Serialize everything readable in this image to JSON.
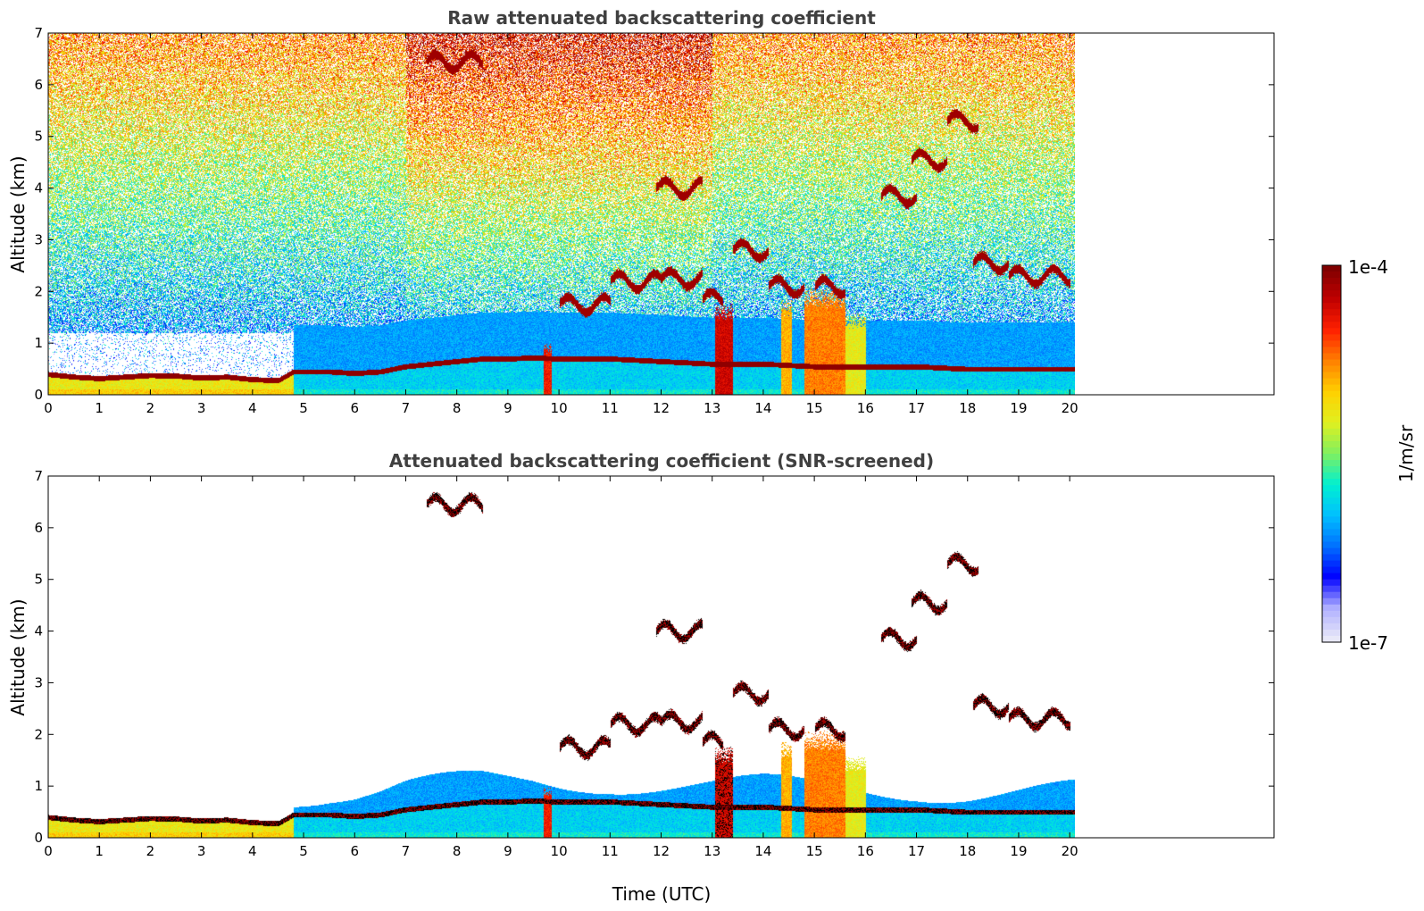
{
  "colors": {
    "background": "#ffffff",
    "title": "#404040",
    "axis": "#000000",
    "colormap": [
      "#e8e8f8",
      "#b0b0ff",
      "#0000ff",
      "#0070ff",
      "#00c0ff",
      "#00f0d0",
      "#80f060",
      "#e0f020",
      "#ffd000",
      "#ff8000",
      "#ff2000",
      "#c00000",
      "#800000"
    ]
  },
  "chart_data": [
    {
      "type": "heatmap",
      "title": "Raw attenuated backscattering coefficient",
      "xlabel": "",
      "ylabel": "Altitude (km)",
      "xlim": [
        0,
        24
      ],
      "ylim": [
        0,
        7
      ],
      "x_ticks": [
        "0",
        "1",
        "2",
        "3",
        "4",
        "5",
        "6",
        "7",
        "8",
        "9",
        "10",
        "11",
        "12",
        "13",
        "14",
        "15",
        "16",
        "17",
        "18",
        "19",
        "20"
      ],
      "y_ticks": [
        "0",
        "1",
        "2",
        "3",
        "4",
        "5",
        "6",
        "7"
      ],
      "data_extent_hours": [
        0,
        20.1
      ],
      "screened": false,
      "boundary_layer": [
        [
          0,
          0.4
        ],
        [
          0.5,
          0.35
        ],
        [
          1,
          0.32
        ],
        [
          1.5,
          0.35
        ],
        [
          2,
          0.38
        ],
        [
          2.5,
          0.37
        ],
        [
          3,
          0.33
        ],
        [
          3.5,
          0.35
        ],
        [
          4,
          0.3
        ],
        [
          4.5,
          0.28
        ],
        [
          4.8,
          0.45
        ],
        [
          5.5,
          0.45
        ],
        [
          6,
          0.42
        ],
        [
          6.5,
          0.45
        ],
        [
          7,
          0.55
        ],
        [
          7.5,
          0.6
        ],
        [
          8,
          0.65
        ],
        [
          8.5,
          0.7
        ],
        [
          9,
          0.7
        ],
        [
          9.5,
          0.72
        ],
        [
          10,
          0.7
        ],
        [
          10.5,
          0.7
        ],
        [
          11,
          0.7
        ],
        [
          12,
          0.65
        ],
        [
          13,
          0.6
        ],
        [
          14,
          0.6
        ],
        [
          15,
          0.55
        ],
        [
          16,
          0.55
        ],
        [
          17,
          0.55
        ],
        [
          18,
          0.5
        ],
        [
          19,
          0.5
        ],
        [
          20.1,
          0.5
        ]
      ],
      "clouds": [
        {
          "t": [
            10.0,
            11.0
          ],
          "z": [
            1.4,
            2.1
          ]
        },
        {
          "t": [
            11.0,
            12.0
          ],
          "z": [
            1.9,
            2.5
          ]
        },
        {
          "t": [
            12.0,
            12.8
          ],
          "z": [
            2.1,
            2.4
          ]
        },
        {
          "t": [
            12.8,
            13.2
          ],
          "z": [
            1.7,
            2.0
          ]
        },
        {
          "t": [
            13.4,
            14.1
          ],
          "z": [
            2.5,
            3.1
          ]
        },
        {
          "t": [
            14.1,
            14.8
          ],
          "z": [
            1.9,
            2.3
          ]
        },
        {
          "t": [
            15.0,
            15.6
          ],
          "z": [
            2.0,
            2.2
          ]
        },
        {
          "t": [
            16.3,
            17.0
          ],
          "z": [
            3.6,
            4.1
          ]
        },
        {
          "t": [
            16.9,
            17.6
          ],
          "z": [
            4.3,
            4.8
          ]
        },
        {
          "t": [
            17.6,
            18.2
          ],
          "z": [
            5.2,
            5.4
          ]
        },
        {
          "t": [
            18.1,
            18.8
          ],
          "z": [
            2.3,
            2.8
          ]
        },
        {
          "t": [
            18.8,
            20.0
          ],
          "z": [
            2.1,
            2.5
          ]
        },
        {
          "t": [
            11.9,
            12.8
          ],
          "z": [
            3.6,
            4.4
          ]
        },
        {
          "t": [
            7.4,
            8.5
          ],
          "z": [
            6.3,
            6.6
          ]
        }
      ],
      "precip_shafts": [
        {
          "t": [
            9.7,
            9.85
          ],
          "z_top": 1.0,
          "intensity": 0.8
        },
        {
          "t": [
            13.05,
            13.4
          ],
          "z_top": 1.8,
          "intensity": 0.85
        },
        {
          "t": [
            14.35,
            14.55
          ],
          "z_top": 1.9,
          "intensity": 0.65
        },
        {
          "t": [
            14.8,
            15.6
          ],
          "z_top": 2.1,
          "intensity": 0.7
        },
        {
          "t": [
            15.6,
            16.0
          ],
          "z_top": 1.6,
          "intensity": 0.55
        }
      ]
    },
    {
      "type": "heatmap",
      "title": "Attenuated backscattering coefficient (SNR-screened)",
      "xlabel": "Time (UTC)",
      "ylabel": "Altitude (km)",
      "xlim": [
        0,
        24
      ],
      "ylim": [
        0,
        7
      ],
      "x_ticks": [
        "0",
        "1",
        "2",
        "3",
        "4",
        "5",
        "6",
        "7",
        "8",
        "9",
        "10",
        "11",
        "12",
        "13",
        "14",
        "15",
        "16",
        "17",
        "18",
        "19",
        "20"
      ],
      "y_ticks": [
        "0",
        "1",
        "2",
        "3",
        "4",
        "5",
        "6",
        "7"
      ],
      "data_extent_hours": [
        0,
        20.1
      ],
      "screened": true
    }
  ],
  "colorbar": {
    "min_label": "1e-7",
    "max_label": "1e-4",
    "unit": "1/m/sr",
    "scale": "log"
  }
}
